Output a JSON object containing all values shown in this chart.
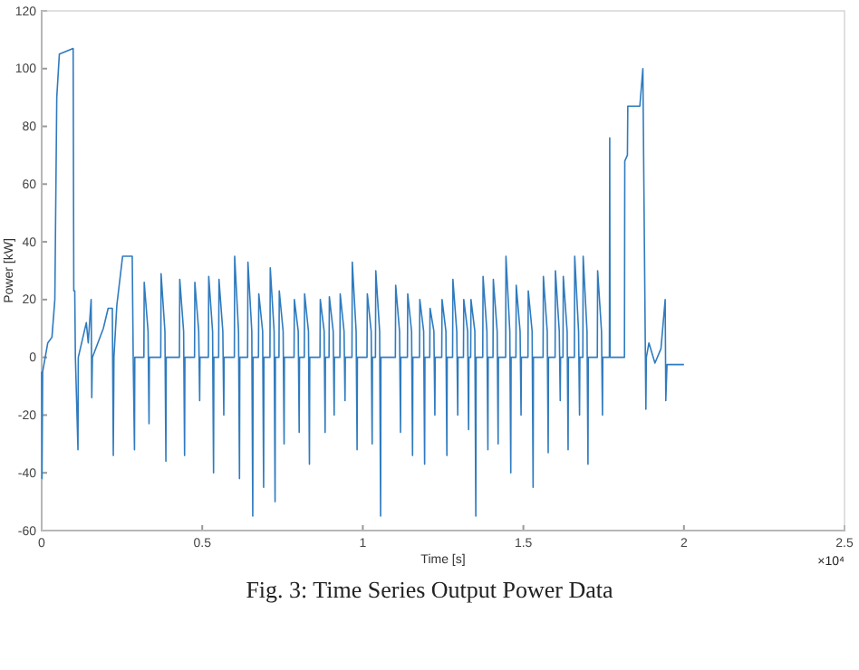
{
  "chart_data": {
    "type": "line",
    "xlabel": "Time [s]",
    "ylabel": "Power [kW]",
    "annotations": [
      "×10⁴",
      "Fig. 3: Time Series Output Power Data"
    ],
    "xlim": [
      0,
      2.5
    ],
    "ylim": [
      -60,
      120
    ],
    "xticks": [
      0,
      0.5,
      1,
      1.5,
      2,
      2.5
    ],
    "yticks": [
      -60,
      -40,
      -20,
      0,
      20,
      40,
      60,
      80,
      100,
      120
    ],
    "grid": false,
    "marker": "none",
    "line_style": "solid",
    "series": [
      {
        "color": "#2f7bbf",
        "x": [
          0,
          0.001,
          0.003,
          0.019,
          0.032,
          0.041,
          0.047,
          0.055,
          0.098,
          0.1,
          0.103,
          0.105,
          0.113,
          0.114,
          0.139,
          0.145,
          0.154,
          0.156,
          0.158,
          0.192,
          0.207,
          0.22,
          0.223,
          0.225,
          0.234,
          0.252,
          0.282,
          0.285,
          0.289,
          0.29,
          0.3183,
          0.3193,
          0.3313,
          0.3343,
          0.3353,
          0.3708,
          0.3718,
          0.3838,
          0.3868,
          0.3878,
          0.429,
          0.43,
          0.442,
          0.445,
          0.446,
          0.476,
          0.477,
          0.489,
          0.492,
          0.493,
          0.5192,
          0.5202,
          0.5322,
          0.5352,
          0.5362,
          0.5511,
          0.5521,
          0.5641,
          0.5671,
          0.5681,
          0.6,
          0.601,
          0.613,
          0.616,
          0.617,
          0.6413,
          0.6423,
          0.6543,
          0.6573,
          0.6583,
          0.6751,
          0.6761,
          0.6881,
          0.6911,
          0.6921,
          0.7108,
          0.7118,
          0.7238,
          0.7268,
          0.7278,
          0.7389,
          0.7399,
          0.7519,
          0.7549,
          0.7559,
          0.7859,
          0.7869,
          0.7989,
          0.8019,
          0.8029,
          0.8178,
          0.8188,
          0.8308,
          0.8338,
          0.8348,
          0.8666,
          0.8676,
          0.8796,
          0.8826,
          0.8836,
          0.8948,
          0.8958,
          0.9078,
          0.9108,
          0.9118,
          0.9286,
          0.9296,
          0.9416,
          0.9446,
          0.9456,
          0.9662,
          0.9672,
          0.9792,
          0.9822,
          0.9832,
          1.0131,
          1.0141,
          1.0261,
          1.0291,
          1.0301,
          1.0394,
          1.0404,
          1.0524,
          1.0554,
          1.0564,
          1.1014,
          1.1024,
          1.1144,
          1.1174,
          1.1184,
          1.1389,
          1.1399,
          1.1519,
          1.1549,
          1.1559,
          1.1765,
          1.1775,
          1.1895,
          1.1925,
          1.1935,
          1.2084,
          1.2094,
          1.2214,
          1.2244,
          1.2254,
          1.2458,
          1.2468,
          1.2588,
          1.2618,
          1.2628,
          1.2796,
          1.2806,
          1.2926,
          1.2956,
          1.2966,
          1.3134,
          1.3144,
          1.3264,
          1.3294,
          1.3304,
          1.3359,
          1.3369,
          1.3489,
          1.3519,
          1.3529,
          1.3735,
          1.3745,
          1.3865,
          1.3895,
          1.3905,
          1.4054,
          1.4064,
          1.4184,
          1.4214,
          1.4224,
          1.4448,
          1.4458,
          1.4578,
          1.4608,
          1.4618,
          1.4768,
          1.4778,
          1.4898,
          1.4928,
          1.4938,
          1.5143,
          1.5153,
          1.5273,
          1.5303,
          1.5313,
          1.5613,
          1.5623,
          1.5743,
          1.5773,
          1.5783,
          1.5988,
          1.5998,
          1.6118,
          1.6148,
          1.6158,
          1.6233,
          1.6243,
          1.6363,
          1.6393,
          1.6403,
          1.6589,
          1.6599,
          1.6719,
          1.6749,
          1.6759,
          1.6852,
          1.6862,
          1.6982,
          1.7012,
          1.7022,
          1.7303,
          1.7313,
          1.7433,
          1.7463,
          1.7473,
          1.7679,
          1.7689,
          1.77,
          1.8148,
          1.8158,
          1.824,
          1.8252,
          1.8627,
          1.8721,
          1.88,
          1.8815,
          1.883,
          1.891,
          1.9097,
          1.9285,
          1.9416,
          1.9435,
          1.9473,
          2
        ],
        "values": [
          -5,
          -42,
          -5,
          5,
          7,
          20,
          90,
          105,
          107,
          23,
          23,
          0,
          -32,
          0,
          12,
          5,
          20,
          -14,
          0,
          10,
          17,
          17,
          -34,
          0,
          18,
          35,
          35,
          0,
          -32,
          0,
          0,
          26,
          9,
          -23,
          0,
          0,
          29,
          9,
          -36,
          0,
          0,
          27,
          9,
          -34,
          0,
          0,
          26,
          9,
          -15,
          0,
          0,
          28,
          9,
          -40,
          0,
          0,
          27,
          9,
          -20,
          0,
          0,
          35,
          9,
          -42,
          0,
          0,
          33,
          9,
          -55,
          0,
          0,
          22,
          9,
          -45,
          0,
          0,
          31,
          9,
          -50,
          0,
          0,
          23,
          9,
          -30,
          0,
          0,
          20,
          9,
          -26,
          0,
          0,
          22,
          9,
          -37,
          0,
          0,
          20,
          9,
          -26,
          0,
          0,
          21,
          9,
          -20,
          0,
          0,
          22,
          9,
          -15,
          0,
          0,
          33,
          9,
          -32,
          0,
          0,
          22,
          9,
          -30,
          0,
          0,
          30,
          9,
          -55,
          0,
          0,
          25,
          9,
          -26,
          0,
          0,
          22,
          9,
          -34,
          0,
          0,
          20,
          9,
          -37,
          0,
          0,
          17,
          9,
          -20,
          0,
          0,
          20,
          9,
          -34,
          0,
          0,
          27,
          9,
          -20,
          0,
          0,
          20,
          9,
          -25,
          0,
          0,
          20,
          9,
          -55,
          0,
          0,
          28,
          9,
          -32,
          0,
          0,
          27,
          9,
          -30,
          0,
          0,
          35,
          9,
          -40,
          0,
          0,
          25,
          9,
          -20,
          0,
          0,
          23,
          9,
          -45,
          0,
          0,
          28,
          9,
          -33,
          0,
          0,
          30,
          9,
          -15,
          0,
          0,
          28,
          9,
          -32,
          0,
          0,
          35,
          9,
          -20,
          0,
          0,
          35,
          9,
          -37,
          0,
          0,
          30,
          9,
          -20,
          0,
          0,
          76,
          0,
          0,
          68,
          70,
          87,
          87,
          100,
          0,
          -18,
          0,
          5,
          -2,
          3,
          20,
          -15,
          -2.5,
          -2.5
        ]
      }
    ]
  }
}
